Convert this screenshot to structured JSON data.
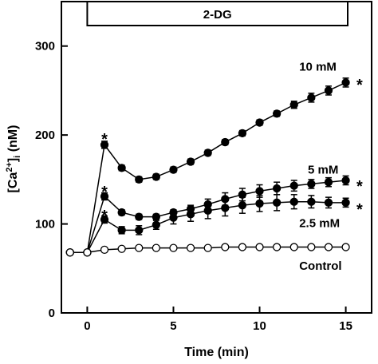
{
  "chart_data": {
    "type": "line",
    "xlabel": "Time (min)",
    "ylabel_main": "[Ca",
    "ylabel_sup": "2+",
    "ylabel_close": "]",
    "ylabel_sub": "i",
    "ylabel_unit": " (nM)",
    "xlim": [
      -1.5,
      16.5
    ],
    "ylim": [
      0,
      350
    ],
    "x_ticks": [
      0,
      5,
      10,
      15
    ],
    "y_ticks": [
      0,
      100,
      200,
      300
    ],
    "treatment_bar": {
      "label": "2-DG",
      "start": 0,
      "end": 16.5
    },
    "series": [
      {
        "name": "10 mM",
        "marker": "filled",
        "x": [
          -1,
          0,
          1,
          2,
          3,
          4,
          5,
          6,
          7,
          8,
          9,
          10,
          11,
          12,
          13,
          14,
          15
        ],
        "y": [
          68,
          68,
          189,
          163,
          150,
          153,
          161,
          170,
          180,
          192,
          202,
          214,
          224,
          234,
          242,
          250,
          259
        ],
        "err": [
          0,
          0,
          4,
          3,
          3,
          3,
          3,
          3,
          3,
          3,
          3,
          3,
          3,
          4,
          5,
          5,
          5
        ]
      },
      {
        "name": "5 mM",
        "marker": "filled",
        "x": [
          -1,
          0,
          1,
          2,
          3,
          4,
          5,
          6,
          7,
          8,
          9,
          10,
          11,
          12,
          13,
          14,
          15
        ],
        "y": [
          68,
          68,
          131,
          113,
          108,
          108,
          113,
          117,
          122,
          128,
          133,
          137,
          140,
          143,
          145,
          147,
          149
        ],
        "err": [
          0,
          0,
          4,
          3,
          3,
          3,
          3,
          4,
          6,
          7,
          7,
          7,
          7,
          6,
          5,
          5,
          5
        ]
      },
      {
        "name": "2.5 mM",
        "marker": "filled",
        "x": [
          -1,
          0,
          1,
          2,
          3,
          4,
          5,
          6,
          7,
          8,
          9,
          10,
          11,
          12,
          13,
          14,
          15
        ],
        "y": [
          68,
          68,
          105,
          93,
          93,
          99,
          107,
          111,
          115,
          118,
          121,
          123,
          124,
          125,
          125,
          124,
          124
        ],
        "err": [
          0,
          0,
          4,
          4,
          5,
          5,
          7,
          8,
          9,
          9,
          9,
          9,
          9,
          8,
          7,
          6,
          5
        ]
      },
      {
        "name": "Control",
        "marker": "open",
        "x": [
          -1,
          0,
          1,
          2,
          3,
          4,
          5,
          6,
          7,
          8,
          9,
          10,
          11,
          12,
          13,
          14,
          15
        ],
        "y": [
          68,
          68,
          71,
          72,
          73,
          73,
          73,
          73,
          73,
          74,
          74,
          74,
          74,
          74,
          74,
          74,
          74
        ],
        "err": [
          0,
          0,
          0,
          0,
          0,
          0,
          0,
          0,
          0,
          0,
          0,
          0,
          0,
          0,
          0,
          0,
          0
        ]
      }
    ],
    "annotations": [
      {
        "text": "*",
        "x": 1.0,
        "y": 200
      },
      {
        "text": "*",
        "x": 1.0,
        "y": 141
      },
      {
        "text": "*",
        "x": 1.0,
        "y": 114
      },
      {
        "text": "*",
        "x": 15.8,
        "y": 261
      },
      {
        "text": "*",
        "x": 15.8,
        "y": 147
      },
      {
        "text": "*",
        "x": 15.8,
        "y": 121
      }
    ],
    "series_labels": [
      {
        "text": "10 mM",
        "x": 12.3,
        "y": 277
      },
      {
        "text": "5 mM",
        "x": 12.8,
        "y": 161
      },
      {
        "text": "2.5 mM",
        "x": 12.3,
        "y": 101
      },
      {
        "text": "Control",
        "x": 12.3,
        "y": 53
      }
    ]
  }
}
